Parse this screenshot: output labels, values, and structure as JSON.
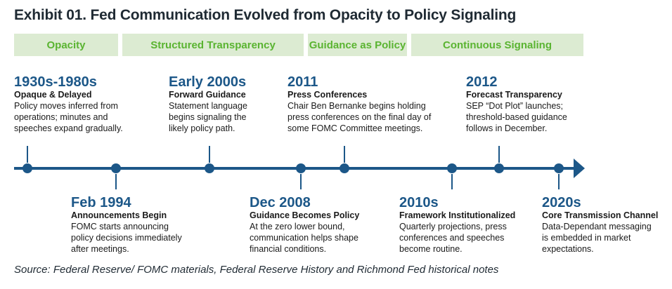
{
  "title": "Exhibit 01. Fed Communication Evolved from Opacity to Policy Signaling",
  "phases": [
    "Opacity",
    "Structured Transparency",
    "Guidance as Policy",
    "Continuous Signaling"
  ],
  "events": [
    {
      "date": "1930s-1980s",
      "heading": "Opaque & Delayed",
      "desc": [
        "Policy moves inferred from",
        "operations; minutes and",
        "speeches expand gradually."
      ]
    },
    {
      "date": "Feb 1994",
      "heading": "Announcements Begin",
      "desc": [
        "FOMC starts announcing",
        "policy decisions immediately",
        "after meetings."
      ]
    },
    {
      "date": "Early 2000s",
      "heading": "Forward Guidance",
      "desc": [
        "Statement language",
        "begins signaling the",
        "likely policy path."
      ]
    },
    {
      "date": "Dec 2008",
      "heading": "Guidance Becomes Policy",
      "desc": [
        "At the zero lower bound,",
        "communication helps shape",
        "financial conditions."
      ]
    },
    {
      "date": "2011",
      "heading": "Press Conferences",
      "desc": [
        "Chair Ben Bernanke begins holding",
        "press conferences on the final day of",
        "some FOMC Committee meetings."
      ]
    },
    {
      "date": "2010s",
      "heading": "Framework Institutionalized",
      "desc": [
        "Quarterly projections, press",
        "conferences and speeches",
        "become routine."
      ]
    },
    {
      "date": "2012",
      "heading": "Forecast Transparency",
      "desc": [
        "SEP “Dot Plot” launches;",
        "threshold-based guidance",
        "follows in December."
      ]
    },
    {
      "date": "2020s",
      "heading": "Core Transmission Channel",
      "desc": [
        "Data-Dependant messaging",
        "is embedded in market",
        "expectations."
      ]
    }
  ],
  "source": "Source: Federal Reserve/ FOMC materials, Federal Reserve History and Richmond Fed historical notes",
  "colors": {
    "timeline": "#1c5788",
    "phase_bg": "#dcebd2",
    "phase_text": "#5ab431"
  }
}
